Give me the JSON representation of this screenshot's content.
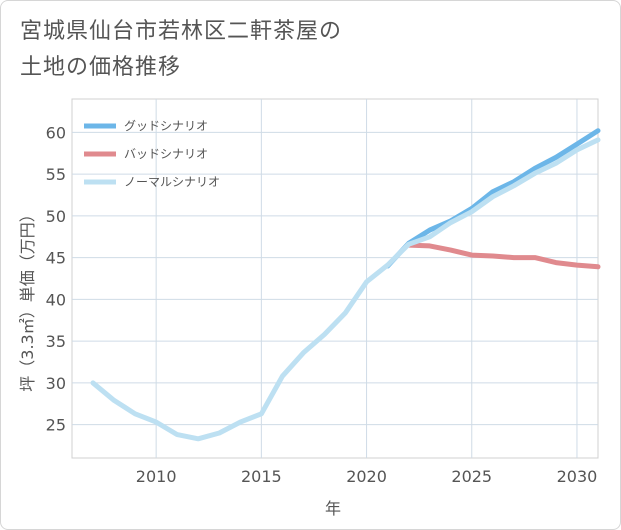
{
  "title_lines": [
    "宮城県仙台市若林区二軒茶屋の",
    "土地の価格推移"
  ],
  "chart_data": {
    "type": "line",
    "title": "宮城県仙台市若林区二軒茶屋の土地の価格推移",
    "xlabel": "年",
    "ylabel": "坪（3.3㎡）単価（万円）",
    "xlim": [
      2006,
      2031
    ],
    "ylim": [
      21,
      64
    ],
    "x_ticks": [
      2010,
      2015,
      2020,
      2025,
      2030
    ],
    "y_ticks": [
      25,
      30,
      35,
      40,
      45,
      50,
      55,
      60
    ],
    "grid": true,
    "legend_position": "top-left",
    "series": [
      {
        "name": "グッドシナリオ",
        "color": "#6cb6e8",
        "x": [
          2021,
          2022,
          2023,
          2024,
          2025,
          2026,
          2027,
          2028,
          2029,
          2030,
          2031
        ],
        "y": [
          44.0,
          46.7,
          48.3,
          49.4,
          50.9,
          52.9,
          54.1,
          55.7,
          57.0,
          58.6,
          60.2
        ]
      },
      {
        "name": "バッドシナリオ",
        "color": "#e08a8e",
        "x": [
          2022,
          2023,
          2024,
          2025,
          2026,
          2027,
          2028,
          2029,
          2030,
          2031
        ],
        "y": [
          46.5,
          46.4,
          45.9,
          45.3,
          45.2,
          45.0,
          45.0,
          44.4,
          44.1,
          43.9
        ]
      },
      {
        "name": "ノーマルシナリオ",
        "color": "#bde0f2",
        "x": [
          2007,
          2008,
          2009,
          2010,
          2011,
          2012,
          2013,
          2014,
          2015,
          2016,
          2017,
          2018,
          2019,
          2020,
          2021,
          2022,
          2023,
          2024,
          2025,
          2026,
          2027,
          2028,
          2029,
          2030,
          2031
        ],
        "y": [
          30.0,
          27.9,
          26.3,
          25.3,
          23.8,
          23.3,
          24.0,
          25.3,
          26.3,
          30.8,
          33.6,
          35.8,
          38.4,
          42.1,
          44.1,
          46.6,
          47.5,
          49.2,
          50.5,
          52.3,
          53.6,
          55.1,
          56.3,
          57.9,
          59.1
        ]
      }
    ]
  }
}
